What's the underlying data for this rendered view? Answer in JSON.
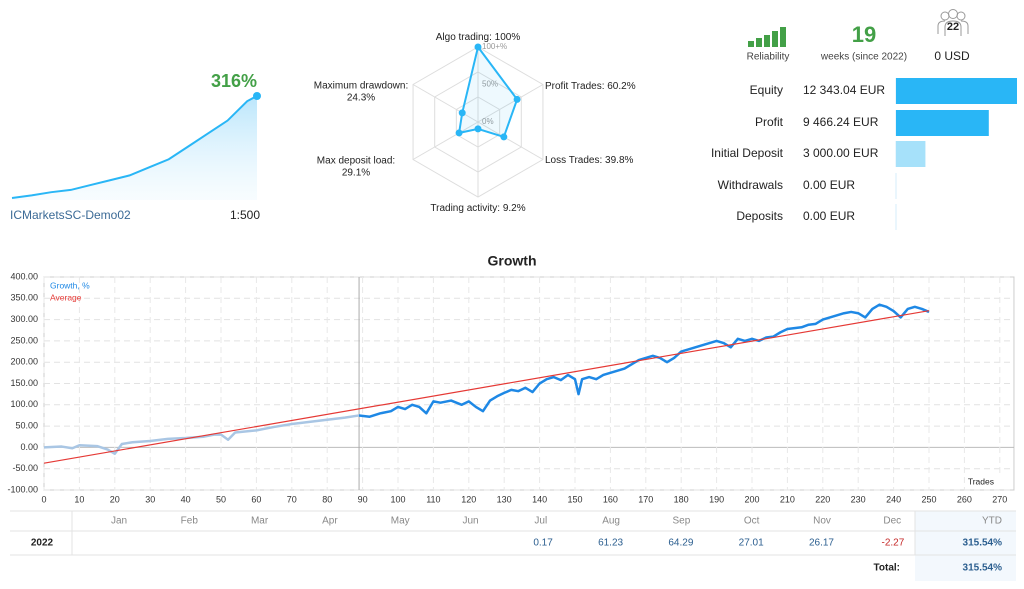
{
  "account": {
    "growth": "316%",
    "server": "ICMarketsSC-Demo02",
    "leverage": "1:500"
  },
  "stats": {
    "reliability_label": "Reliability",
    "weeks": 19,
    "weeks_label": "weeks (since 2022)",
    "subscribers": 22,
    "subscription": "0 USD"
  },
  "chart_data": [
    {
      "type": "area",
      "color": "#29b6f6",
      "x": [
        0,
        20,
        40,
        60,
        80,
        100,
        120,
        140,
        160,
        180,
        200,
        220,
        240,
        250
      ],
      "values": [
        0,
        8,
        18,
        25,
        40,
        55,
        70,
        95,
        120,
        160,
        200,
        240,
        300,
        316
      ]
    },
    {
      "type": "radar",
      "color": "#29b6f6",
      "categories": [
        "Algo trading:",
        "Profit Trades:",
        "Loss Trades:",
        "Trading activity:",
        "Max deposit load:",
        "Maximum drawdown:"
      ],
      "values": [
        100,
        60.2,
        39.8,
        9.2,
        29.1,
        24.3
      ],
      "value_labels": [
        "100%",
        "60.2%",
        "39.8%",
        "9.2%",
        "29.1%",
        "24.3%"
      ],
      "rlim": [
        0,
        100
      ],
      "rticks": [
        {
          "value": 0,
          "label": "0%"
        },
        {
          "value": 50,
          "label": "50%"
        },
        {
          "value": 100,
          "label": "100+%"
        }
      ]
    },
    {
      "type": "hbar",
      "categories": [
        "Equity",
        "Profit",
        "Initial Deposit",
        "Withdrawals",
        "Deposits"
      ],
      "values": [
        12343.04,
        9466.24,
        3000,
        0,
        0
      ],
      "value_labels": [
        "12 343.04 EUR",
        "9 466.24 EUR",
        "3 000.00 EUR",
        "0.00 EUR",
        "0.00 EUR"
      ],
      "colors": [
        "#29b6f6",
        "#29b6f6",
        "#a6e1fa",
        "#a6e1fa",
        "#a6e1fa"
      ]
    },
    {
      "type": "line",
      "title": "Growth",
      "xlabel": "Trades",
      "xlim": [
        0,
        274
      ],
      "ylim": [
        -100,
        400
      ],
      "xticks": [
        0,
        10,
        20,
        30,
        40,
        50,
        60,
        70,
        80,
        90,
        100,
        110,
        120,
        130,
        140,
        150,
        160,
        170,
        180,
        190,
        200,
        210,
        220,
        230,
        240,
        250,
        260,
        270
      ],
      "yticks": [
        {
          "value": 400,
          "label": "400.00"
        },
        {
          "value": 350,
          "label": "350.00"
        },
        {
          "value": 300,
          "label": "300.00"
        },
        {
          "value": 250,
          "label": "250.00"
        },
        {
          "value": 200,
          "label": "200.00"
        },
        {
          "value": 150,
          "label": "150.00"
        },
        {
          "value": 100,
          "label": "100.00"
        },
        {
          "value": 50,
          "label": "50.00"
        },
        {
          "value": 0,
          "label": "0.00"
        },
        {
          "value": -50,
          "label": "-50.00"
        },
        {
          "value": -100,
          "label": "-100.00"
        }
      ],
      "grid": true,
      "legend": "upper left",
      "history_until": 89,
      "history_color": "#a9c6e4",
      "series": [
        {
          "name": "Growth, %",
          "color": "#1e88e5",
          "x": [
            0,
            5,
            8,
            10,
            15,
            18,
            20,
            22,
            25,
            30,
            35,
            40,
            45,
            48,
            50,
            52,
            54,
            60,
            65,
            70,
            75,
            80,
            85,
            89,
            92,
            95,
            98,
            100,
            102,
            104,
            106,
            108,
            110,
            112,
            115,
            118,
            120,
            122,
            124,
            126,
            128,
            130,
            132,
            134,
            136,
            138,
            140,
            142,
            144,
            146,
            148,
            150,
            151,
            152,
            154,
            156,
            158,
            160,
            162,
            164,
            166,
            168,
            170,
            172,
            174,
            176,
            178,
            180,
            182,
            184,
            186,
            188,
            190,
            192,
            194,
            196,
            198,
            200,
            202,
            204,
            206,
            208,
            210,
            212,
            214,
            216,
            218,
            220,
            222,
            224,
            226,
            228,
            230,
            232,
            234,
            236,
            238,
            240,
            242,
            244,
            246,
            248,
            250
          ],
          "values": [
            0,
            2,
            -2,
            5,
            3,
            -5,
            -15,
            8,
            12,
            15,
            20,
            22,
            25,
            30,
            30,
            18,
            35,
            40,
            48,
            55,
            60,
            65,
            70,
            75,
            72,
            80,
            85,
            95,
            90,
            100,
            95,
            80,
            108,
            105,
            110,
            100,
            108,
            95,
            85,
            110,
            120,
            128,
            135,
            132,
            140,
            130,
            150,
            160,
            165,
            158,
            170,
            160,
            125,
            160,
            165,
            160,
            170,
            175,
            180,
            185,
            195,
            205,
            210,
            215,
            210,
            200,
            210,
            225,
            230,
            235,
            240,
            245,
            250,
            245,
            235,
            255,
            250,
            255,
            250,
            258,
            260,
            270,
            278,
            280,
            282,
            288,
            290,
            300,
            305,
            310,
            315,
            318,
            315,
            305,
            325,
            335,
            330,
            320,
            305,
            325,
            330,
            325,
            318
          ]
        },
        {
          "name": "Average",
          "color": "#e53935",
          "x": [
            0,
            250
          ],
          "values": [
            -37,
            321
          ]
        }
      ]
    }
  ],
  "table": {
    "header": [
      null,
      "Jan",
      "Feb",
      "Mar",
      "Apr",
      "May",
      "Jun",
      "Jul",
      "Aug",
      "Sep",
      "Oct",
      "Nov",
      "Dec",
      "YTD"
    ],
    "rows": [
      [
        "2022",
        null,
        null,
        null,
        null,
        null,
        null,
        0.17,
        61.23,
        64.29,
        27.01,
        26.17,
        -2.27,
        "315.54%"
      ]
    ],
    "total_label": "Total:",
    "total": "315.54%"
  }
}
